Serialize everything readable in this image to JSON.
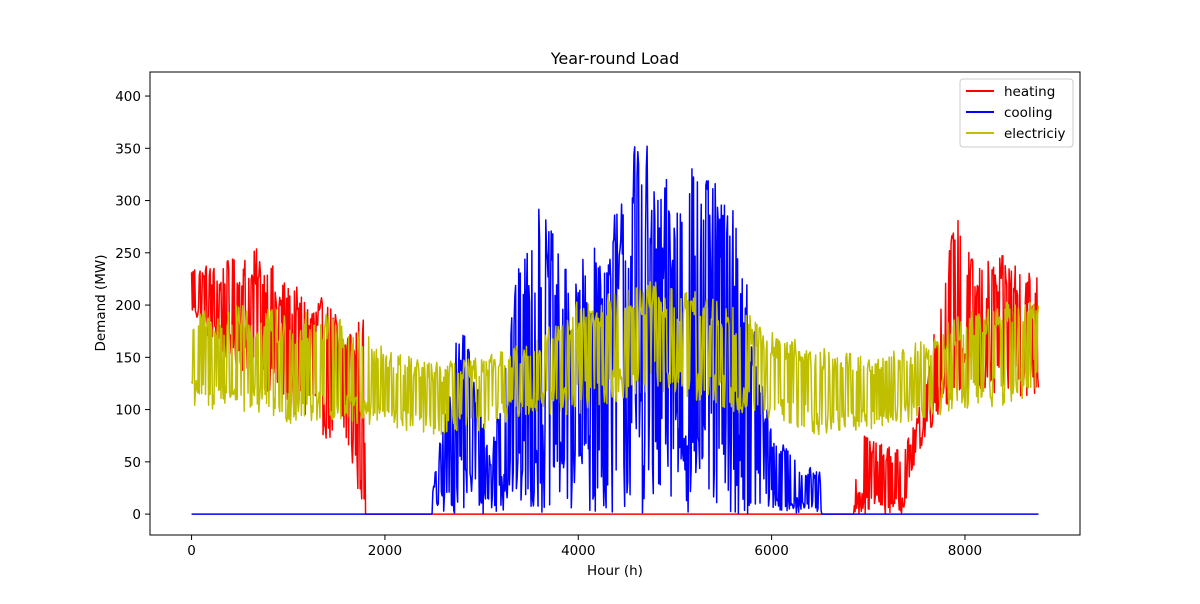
{
  "chart_data": {
    "type": "line",
    "title": "Year-round Load",
    "xlabel": "Hour (h)",
    "ylabel": "Demand (MW)",
    "xlim": [
      -430,
      9190
    ],
    "ylim": [
      -20,
      423
    ],
    "xticks": [
      0,
      2000,
      4000,
      6000,
      8000
    ],
    "yticks": [
      0,
      50,
      100,
      150,
      200,
      250,
      300,
      350,
      400
    ],
    "xtick_labels": [
      "0",
      "2000",
      "4000",
      "6000",
      "8000"
    ],
    "ytick_labels": [
      "0",
      "50",
      "100",
      "150",
      "200",
      "250",
      "300",
      "350",
      "400"
    ],
    "grid": false,
    "legend_position": "top-right",
    "series": [
      {
        "name": "heating",
        "color": "#ff0000",
        "envelope": {
          "x": [
            0,
            300,
            700,
            1000,
            1300,
            1600,
            1780,
            1800,
            6850,
            6900,
            7100,
            7350,
            7500,
            7700,
            7900,
            8100,
            8300,
            8500,
            8760
          ],
          "low": [
            190,
            150,
            125,
            95,
            80,
            55,
            0,
            0,
            0,
            0,
            0,
            0,
            55,
            90,
            115,
            105,
            110,
            112,
            110
          ],
          "high": [
            240,
            240,
            255,
            220,
            210,
            190,
            190,
            0,
            0,
            80,
            70,
            60,
            90,
            185,
            290,
            240,
            245,
            250,
            230
          ]
        }
      },
      {
        "name": "cooling",
        "color": "#0000ff",
        "envelope": {
          "x": [
            0,
            2480,
            2500,
            2800,
            3100,
            3300,
            3600,
            3900,
            4200,
            4500,
            4650,
            4800,
            5000,
            5300,
            5600,
            5800,
            6000,
            6300,
            6500,
            6520,
            8760
          ],
          "low": [
            0,
            0,
            0,
            0,
            0,
            0,
            0,
            0,
            0,
            0,
            0,
            0,
            0,
            0,
            0,
            0,
            0,
            0,
            0,
            0,
            0
          ],
          "high": [
            0,
            0,
            30,
            200,
            60,
            210,
            300,
            230,
            260,
            320,
            400,
            300,
            340,
            330,
            300,
            190,
            80,
            50,
            40,
            0,
            0
          ]
        }
      },
      {
        "name": "electriciy",
        "color": "#bfbf00",
        "envelope": {
          "x": [
            0,
            500,
            1000,
            1500,
            2000,
            2500,
            3000,
            3500,
            4000,
            4500,
            4800,
            5000,
            5500,
            6000,
            6500,
            7000,
            7500,
            8000,
            8500,
            8760
          ],
          "low": [
            100,
            95,
            85,
            90,
            80,
            75,
            80,
            95,
            95,
            110,
            115,
            110,
            100,
            90,
            75,
            80,
            90,
            100,
            105,
            110
          ],
          "high": [
            195,
            200,
            195,
            190,
            160,
            145,
            150,
            165,
            205,
            215,
            225,
            215,
            210,
            175,
            160,
            150,
            165,
            195,
            205,
            205
          ]
        }
      }
    ]
  }
}
